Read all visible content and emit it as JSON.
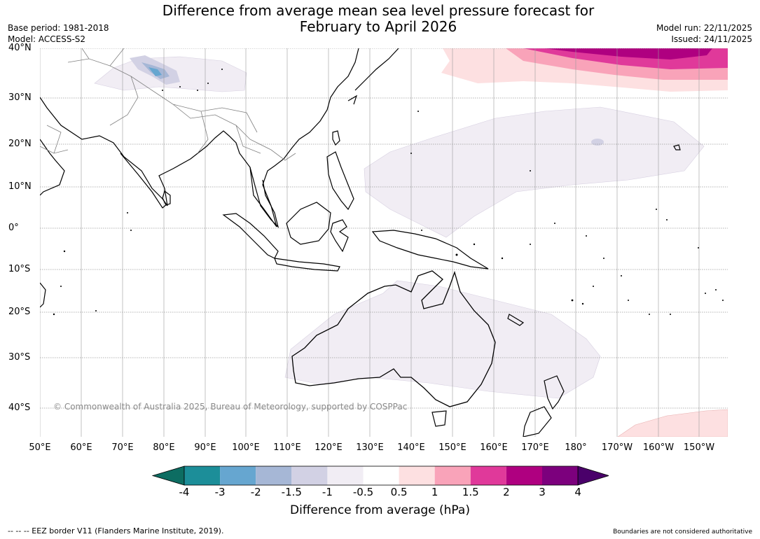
{
  "header": {
    "title_line1": "Difference from average mean sea level pressure forecast for",
    "title_line2": "February to April 2026",
    "base_period": "Base period: 1981-2018",
    "model": "Model: ACCESS-S2",
    "model_run": "Model run: 22/11/2025",
    "issued": "Issued: 24/11/2025"
  },
  "map": {
    "lat_labels": [
      "40°N",
      "30°N",
      "20°N",
      "10°N",
      "0°",
      "10°S",
      "20°S",
      "30°S",
      "40°S"
    ],
    "lon_labels": [
      "50°E",
      "60°E",
      "70°E",
      "80°E",
      "90°E",
      "100°E",
      "110°E",
      "120°E",
      "130°E",
      "140°E",
      "150°E",
      "160°E",
      "170°E",
      "180°",
      "170°W",
      "160°W",
      "150°W"
    ],
    "copyright": "© Commonwealth of Australia 2025, Bureau of Meteorology, supported by COSPPac",
    "land_border_color": "#000000",
    "gridline_color": "#9a9a9a"
  },
  "colorbar": {
    "ticks": [
      "-4",
      "-3",
      "-2",
      "-1.5",
      "-1",
      "-0.5",
      "0.5",
      "1",
      "1.5",
      "2",
      "3",
      "4"
    ],
    "colors": [
      "#0d6d62",
      "#1c8e99",
      "#66a6d0",
      "#a6b7d6",
      "#d2d1e4",
      "#f1edf4",
      "#ffffff",
      "#fde0e1",
      "#f9a3b9",
      "#e0399a",
      "#af0080",
      "#7c007d",
      "#4a006a"
    ],
    "label": "Difference from average (hPa)"
  },
  "footer": {
    "eez": "--  --  -- EEZ border V11 (Flanders Marine Institute, 2019).",
    "disclaimer": "Boundaries are not considered authoritative"
  }
}
